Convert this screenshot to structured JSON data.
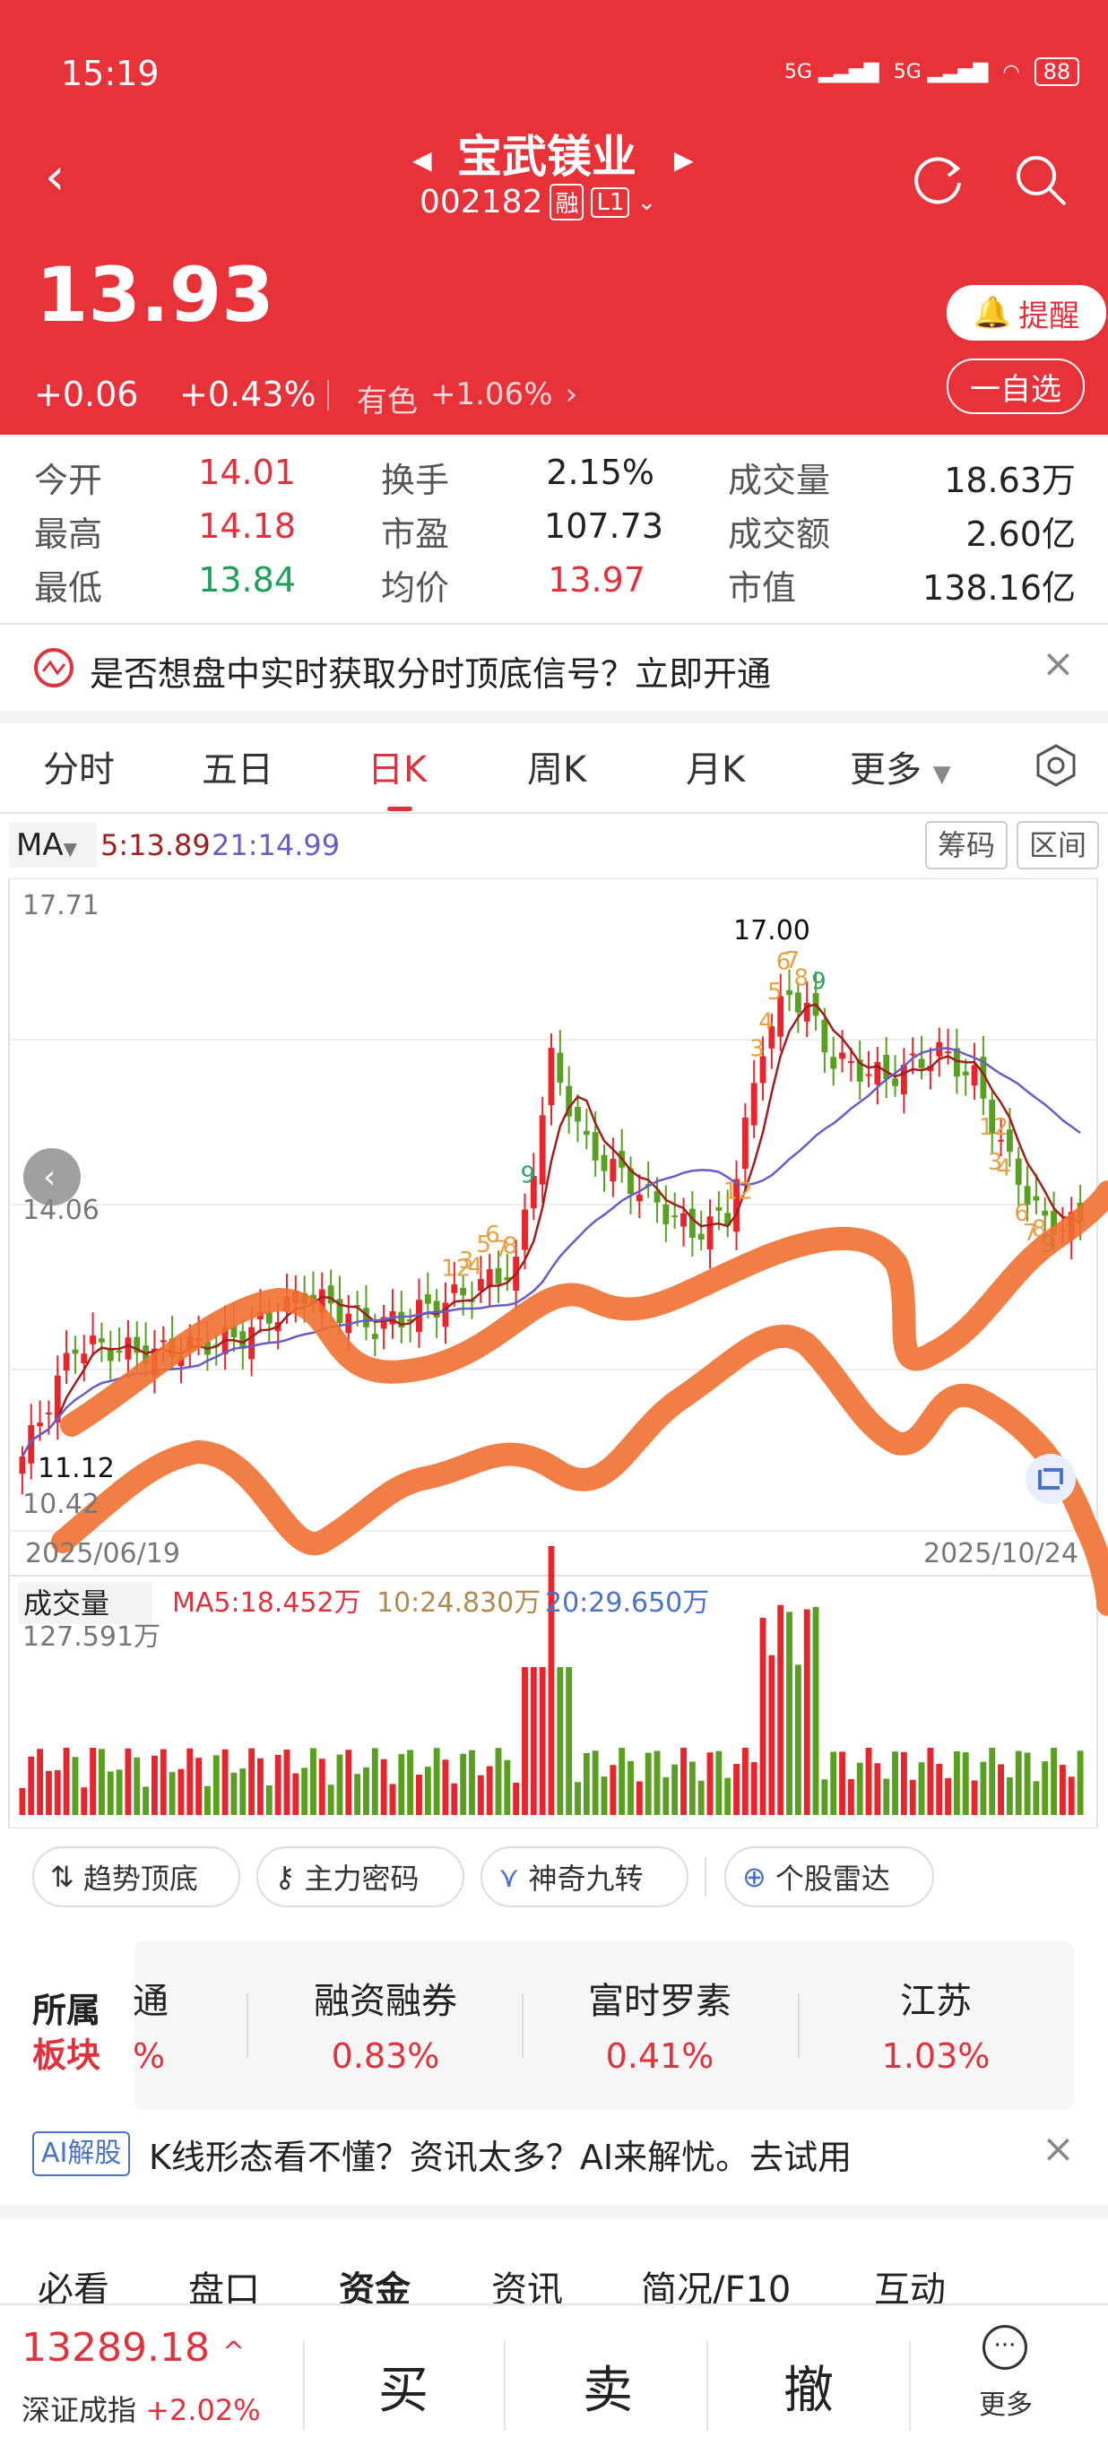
{
  "status_bar": {
    "time": "15:19",
    "signal1": "5G",
    "signal2": "5G",
    "battery": "88"
  },
  "header": {
    "stock_name": "宝武镁业",
    "stock_code": "002182",
    "tag_margin": "融",
    "tag_level": "L1",
    "price": "13.93",
    "change": "+0.06",
    "change_pct": "+0.43%",
    "sector_name": "有色",
    "sector_change": "+1.06%",
    "alert_label": "提醒",
    "watchlist_label": "一自选"
  },
  "stats": [
    {
      "label": "今开",
      "value": "14.01",
      "color": "red"
    },
    {
      "label": "换手",
      "value": "2.15%",
      "color": "black"
    },
    {
      "label": "成交量",
      "value": "18.63万",
      "color": "black"
    },
    {
      "label": "最高",
      "value": "14.18",
      "color": "red"
    },
    {
      "label": "市盈",
      "value": "107.73",
      "color": "black"
    },
    {
      "label": "成交额",
      "value": "2.60亿",
      "color": "black"
    },
    {
      "label": "最低",
      "value": "13.84",
      "color": "green"
    },
    {
      "label": "均价",
      "value": "13.97",
      "color": "red"
    },
    {
      "label": "市值",
      "value": "138.16亿",
      "color": "black"
    }
  ],
  "signal_banner": {
    "text": "是否想盘中实时获取分时顶底信号？立即开通"
  },
  "chart_tabs": [
    "分时",
    "五日",
    "日K",
    "周K",
    "月K",
    "更多"
  ],
  "active_tab": "日K",
  "chart_header": {
    "ma_label": "MA",
    "ma5": "5:13.89",
    "ma21": "21:14.99",
    "chips_btn": "筹码",
    "range_btn": "区间"
  },
  "chart_data": {
    "type": "candlestick",
    "y_ticks": [
      "17.71",
      "14.06",
      "10.42"
    ],
    "ylim": [
      10.42,
      17.71
    ],
    "x_start": "2025/06/19",
    "x_end": "2025/10/24",
    "high_marker": "17.00",
    "low_marker": "11.12",
    "volume_label": "成交量",
    "volume_max": "127.591万",
    "vol_ma5": "MA5:18.452万",
    "vol_ma10": "10:24.830万",
    "vol_ma20": "20:29.650万",
    "colors": {
      "up": "#e8242c",
      "down": "#5aa020",
      "ma5": "#a01e1e",
      "ma21": "#6a5cc8",
      "ma10v": "#b08a50",
      "ma20v": "#4a72c8",
      "annotation": "#f07030"
    },
    "nine_turn_labels": [
      "12",
      "3",
      "4",
      "5",
      "6",
      "7",
      "8",
      "9",
      "12",
      "3",
      "4",
      "5",
      "6",
      "7",
      "8",
      "9",
      "12",
      "3",
      "4",
      "6",
      "7",
      "8",
      "9"
    ]
  },
  "tools": [
    {
      "label": "趋势顶底",
      "icon": "trend-icon"
    },
    {
      "label": "主力密码",
      "icon": "key-icon"
    },
    {
      "label": "神奇九转",
      "icon": "nine-turn-icon"
    },
    {
      "label": "个股雷达",
      "icon": "radar-icon"
    }
  ],
  "sectors": {
    "title1": "所属",
    "title2": "板块",
    "items": [
      {
        "name": "通",
        "pct": "%"
      },
      {
        "name": "融资融券",
        "pct": "0.83%"
      },
      {
        "name": "富时罗素",
        "pct": "0.41%"
      },
      {
        "name": "江苏",
        "pct": "1.03%"
      }
    ]
  },
  "ai_banner": {
    "badge": "AI解股",
    "text": "K线形态看不懂？资讯太多？AI来解忧。去试用"
  },
  "bottom_tabs": [
    "必看",
    "盘口",
    "资金",
    "资讯",
    "简况/F10",
    "互动"
  ],
  "footer": {
    "index_value": "13289.18",
    "index_name": "深证成指",
    "index_change": "+2.02%",
    "buy": "买",
    "sell": "卖",
    "cancel": "撤",
    "more": "更多"
  }
}
